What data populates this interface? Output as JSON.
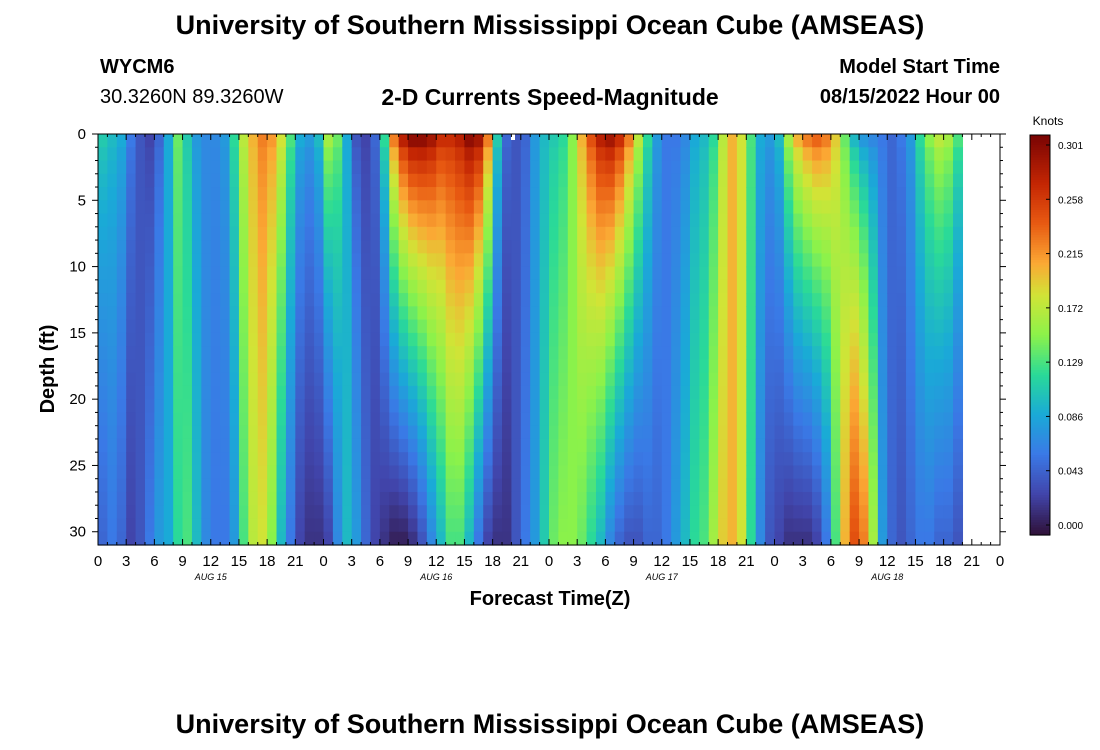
{
  "header": {
    "title": "University of Southern Mississippi Ocean Cube (AMSEAS)",
    "station_id": "WYCM6",
    "coordinates": "30.3260N  89.3260W",
    "subtitle": "2-D Currents Speed-Magnitude",
    "model_start_label": "Model Start Time",
    "model_start_value": "08/15/2022 Hour 00"
  },
  "footer": {
    "title": "University of Southern Mississippi Ocean Cube (AMSEAS)"
  },
  "chart_data": {
    "type": "heatmap",
    "title": "2-D Currents Speed-Magnitude",
    "xlabel": "Forecast Time(Z)",
    "ylabel": "Depth (ft)",
    "x_range_hours": [
      0,
      96
    ],
    "y_range_ft": [
      0,
      31
    ],
    "x_ticks": [
      "0",
      "3",
      "6",
      "9",
      "12",
      "15",
      "18",
      "21",
      "0",
      "3",
      "6",
      "9",
      "12",
      "15",
      "18",
      "21",
      "0",
      "3",
      "6",
      "9",
      "12",
      "15",
      "18",
      "21",
      "0",
      "3",
      "6",
      "9",
      "12",
      "15",
      "18",
      "21",
      "0"
    ],
    "day_labels": [
      "AUG 15",
      "AUG 16",
      "AUG 17",
      "AUG 18"
    ],
    "y_ticks": [
      "0",
      "5",
      "10",
      "15",
      "20",
      "25",
      "30"
    ],
    "colorbar": {
      "unit": "Knots",
      "labels": [
        "0.301",
        "0.258",
        "0.215",
        "0.172",
        "0.129",
        "0.086",
        "0.043",
        "0.000"
      ],
      "min": 0.0,
      "max": 0.301
    },
    "surface_speed_knots": [
      0.11,
      0.1,
      0.09,
      0.06,
      0.04,
      0.03,
      0.05,
      0.09,
      0.14,
      0.11,
      0.08,
      0.07,
      0.07,
      0.08,
      0.12,
      0.17,
      0.2,
      0.22,
      0.21,
      0.18,
      0.13,
      0.09,
      0.08,
      0.1,
      0.16,
      0.14,
      0.09,
      0.04,
      0.03,
      0.05,
      0.12,
      0.22,
      0.27,
      0.29,
      0.29,
      0.28,
      0.26,
      0.26,
      0.27,
      0.29,
      0.28,
      0.22,
      0.11,
      0.05,
      0.04,
      0.05,
      0.08,
      0.1,
      0.11,
      0.12,
      0.15,
      0.2,
      0.24,
      0.27,
      0.28,
      0.26,
      0.22,
      0.17,
      0.12,
      0.08,
      0.06,
      0.06,
      0.07,
      0.09,
      0.1,
      0.12,
      0.17,
      0.2,
      0.18,
      0.13,
      0.09,
      0.08,
      0.1,
      0.16,
      0.2,
      0.22,
      0.23,
      0.22,
      0.19,
      0.14,
      0.1,
      0.08,
      0.07,
      0.06,
      0.05,
      0.06,
      0.08,
      0.12,
      0.15,
      0.17,
      0.16,
      0.13
    ],
    "bottom_speed_knots": [
      0.05,
      0.06,
      0.05,
      0.03,
      0.04,
      0.06,
      0.08,
      0.09,
      0.12,
      0.13,
      0.1,
      0.07,
      0.06,
      0.06,
      0.08,
      0.13,
      0.17,
      0.18,
      0.15,
      0.1,
      0.06,
      0.03,
      0.02,
      0.02,
      0.03,
      0.07,
      0.1,
      0.08,
      0.05,
      0.03,
      0.02,
      0.01,
      0.01,
      0.02,
      0.04,
      0.07,
      0.1,
      0.13,
      0.13,
      0.1,
      0.06,
      0.03,
      0.02,
      0.02,
      0.04,
      0.06,
      0.08,
      0.11,
      0.14,
      0.15,
      0.15,
      0.14,
      0.12,
      0.1,
      0.07,
      0.05,
      0.04,
      0.04,
      0.05,
      0.05,
      0.06,
      0.08,
      0.1,
      0.12,
      0.13,
      0.16,
      0.19,
      0.2,
      0.18,
      0.12,
      0.07,
      0.04,
      0.03,
      0.02,
      0.02,
      0.02,
      0.03,
      0.06,
      0.13,
      0.2,
      0.24,
      0.22,
      0.16,
      0.08,
      0.05,
      0.04,
      0.05,
      0.06,
      0.06,
      0.05,
      0.05,
      0.04
    ]
  }
}
